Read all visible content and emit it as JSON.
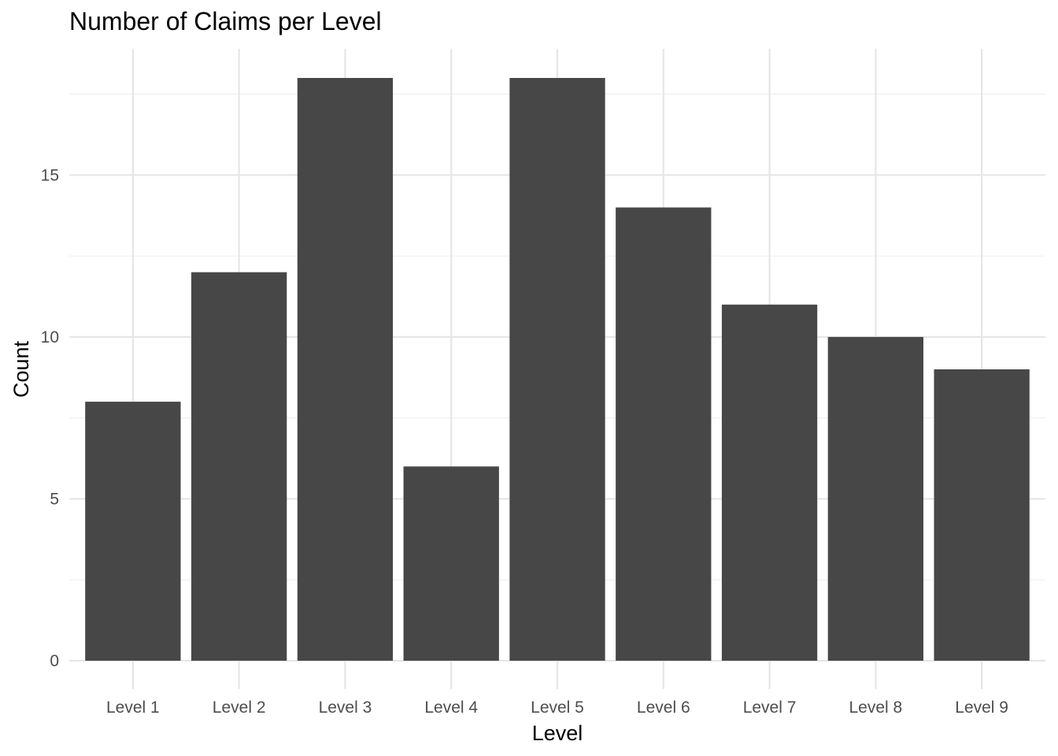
{
  "chart_data": {
    "type": "bar",
    "title": "Number of Claims per Level",
    "xlabel": "Level",
    "ylabel": "Count",
    "categories": [
      "Level 1",
      "Level 2",
      "Level 3",
      "Level 4",
      "Level 5",
      "Level 6",
      "Level 7",
      "Level 8",
      "Level 9"
    ],
    "values": [
      8,
      12,
      18,
      6,
      18,
      14,
      11,
      10,
      9
    ],
    "ylim": [
      0,
      18.9
    ],
    "yticks": [
      0,
      5,
      10,
      15
    ],
    "ytick_labels": [
      "0",
      "5",
      "10",
      "15"
    ],
    "grid": true,
    "legend": "none",
    "colors": {
      "bar": "#474747",
      "grid_major": "#e6e6e6",
      "grid_minor": "#f0f0f0",
      "tick_text": "#4d4d4d",
      "title_text": "#000000"
    }
  }
}
